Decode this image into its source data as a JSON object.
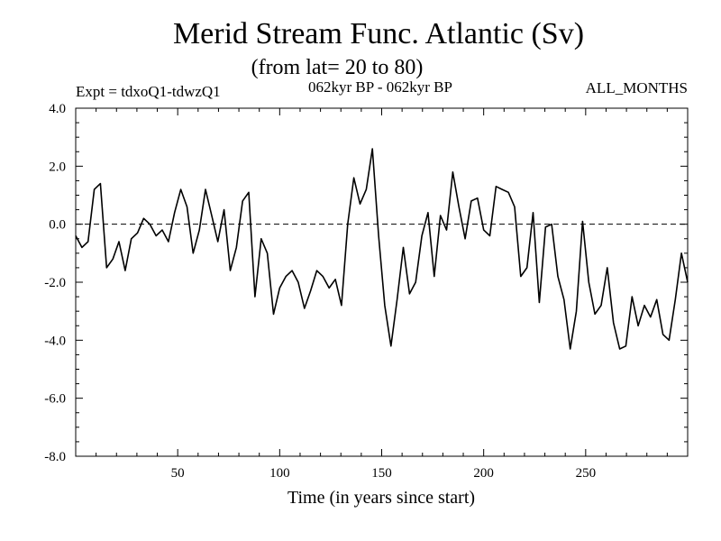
{
  "chart_data": {
    "type": "line",
    "title": "Merid Stream Func. Atlantic (Sv)",
    "subtitle": "(from lat= 20 to 80)",
    "left_header": "Expt = tdxoQ1-tdwzQ1",
    "center_header": "062kyr BP - 062kyr BP",
    "right_header": "ALL_MONTHS",
    "xlabel": "Time (in years since start)",
    "ylabel": "",
    "xlim": [
      0,
      300
    ],
    "ylim": [
      -8,
      4
    ],
    "x_ticks": [
      50,
      100,
      150,
      200,
      250
    ],
    "x_tick_labels": [
      "50",
      "100",
      "150",
      "200",
      "250"
    ],
    "y_ticks": [
      -8,
      -6,
      -4,
      -2,
      0,
      2,
      4
    ],
    "y_tick_labels": [
      "-8.0",
      "-6.0",
      "-4.0",
      "-2.0",
      "0.0",
      "2.0",
      "4.0"
    ],
    "reference_line": 0,
    "series": [
      {
        "name": "tdxoQ1-tdwzQ1",
        "values": [
          -0.4,
          -0.8,
          -0.6,
          1.2,
          1.4,
          -1.5,
          -1.2,
          -0.6,
          -1.6,
          -0.5,
          -0.3,
          0.2,
          0.0,
          -0.4,
          -0.2,
          -0.6,
          0.4,
          1.2,
          0.6,
          -1.0,
          -0.2,
          1.2,
          0.3,
          -0.6,
          0.5,
          -1.6,
          -0.8,
          0.8,
          1.1,
          -2.5,
          -0.5,
          -1.0,
          -3.1,
          -2.2,
          -1.8,
          -1.6,
          -2.0,
          -2.9,
          -2.3,
          -1.6,
          -1.8,
          -2.2,
          -1.9,
          -2.8,
          0.0,
          1.6,
          0.7,
          1.2,
          2.6,
          -0.4,
          -2.8,
          -4.2,
          -2.6,
          -0.8,
          -2.4,
          -2.0,
          -0.4,
          0.4,
          -1.8,
          0.3,
          -0.2,
          1.8,
          0.6,
          -0.5,
          0.8,
          0.9,
          -0.2,
          -0.4,
          1.3,
          1.2,
          1.1,
          0.6,
          -1.8,
          -1.5,
          0.4,
          -2.7,
          -0.1,
          0.0,
          -1.8,
          -2.6,
          -4.3,
          -3.0,
          0.1,
          -2.0,
          -3.1,
          -2.8,
          -1.5,
          -3.4,
          -4.3,
          -4.2,
          -2.5,
          -3.5,
          -2.8,
          -3.2,
          -2.6,
          -3.8,
          -4.0,
          -2.6,
          -1.0,
          -2.0
        ]
      }
    ]
  }
}
